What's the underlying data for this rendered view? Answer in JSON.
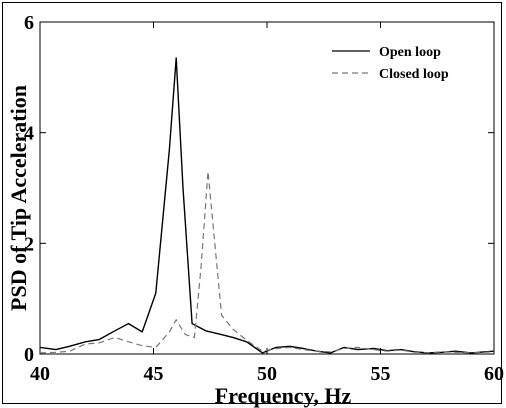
{
  "chart_data": {
    "type": "line",
    "xlabel": "Frequency, Hz",
    "ylabel": "PSD of Tip Acceleration",
    "xlim": [
      40,
      60
    ],
    "ylim": [
      0,
      6
    ],
    "x_ticks": [
      40,
      45,
      50,
      55,
      60
    ],
    "y_ticks": [
      0,
      2,
      4,
      6
    ],
    "grid": false,
    "legend_position": "top-right",
    "series": [
      {
        "name": "Open loop",
        "style": "solid",
        "color": "#000000",
        "x": [
          40,
          40.7,
          41.3,
          42,
          42.6,
          43.3,
          43.9,
          44.5,
          45.1,
          45.7,
          46.0,
          46.3,
          46.7,
          47.3,
          47.9,
          48.5,
          49.1,
          49.8,
          50.4,
          51,
          51.6,
          52.2,
          52.8,
          53.4,
          54,
          54.7,
          55.3,
          55.9,
          56.5,
          57.1,
          57.7,
          58.3,
          59,
          59.6,
          60
        ],
        "y": [
          0.12,
          0.08,
          0.14,
          0.22,
          0.26,
          0.42,
          0.55,
          0.4,
          1.1,
          3.7,
          5.35,
          3.0,
          0.55,
          0.42,
          0.36,
          0.3,
          0.22,
          0.02,
          0.12,
          0.14,
          0.1,
          0.05,
          0.02,
          0.12,
          0.08,
          0.1,
          0.06,
          0.08,
          0.04,
          0.02,
          0.03,
          0.05,
          0.02,
          0.04,
          0.05
        ]
      },
      {
        "name": "Closed loop",
        "style": "dashed",
        "color": "#777777",
        "x": [
          40,
          40.7,
          41.3,
          42,
          42.6,
          43.3,
          43.9,
          44.5,
          45.1,
          45.7,
          46.0,
          46.4,
          46.8,
          47.1,
          47.4,
          47.7,
          48.0,
          48.5,
          49.1,
          49.8,
          50.4,
          51,
          51.6,
          52.2,
          52.8,
          53.4,
          54,
          54.7,
          55.3,
          55.9,
          56.5,
          57.1,
          57.7,
          58.3,
          59,
          59.6,
          60
        ],
        "y": [
          0.02,
          0.03,
          0.05,
          0.18,
          0.2,
          0.3,
          0.22,
          0.15,
          0.12,
          0.4,
          0.62,
          0.35,
          0.3,
          1.6,
          3.3,
          2.0,
          0.7,
          0.45,
          0.25,
          0.05,
          0.1,
          0.12,
          0.08,
          0.05,
          0.04,
          0.1,
          0.12,
          0.08,
          0.05,
          0.07,
          0.03,
          0.02,
          0.04,
          0.03,
          0.02,
          0.03,
          0.04
        ]
      }
    ]
  }
}
